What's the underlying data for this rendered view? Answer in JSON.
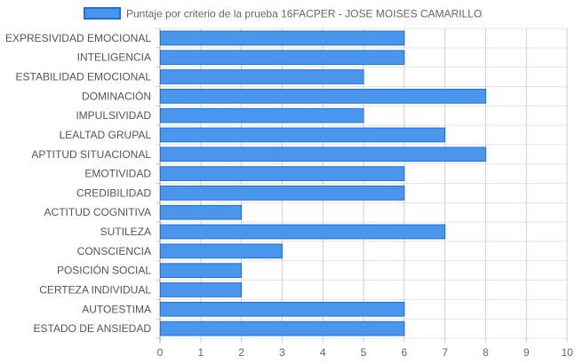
{
  "chart_data": {
    "type": "bar",
    "orientation": "horizontal",
    "categories": [
      "EXPRESIVIDAD EMOCIONAL",
      "INTELIGENCIA",
      "ESTABILIDAD EMOCIONAL",
      "DOMINACIÓN",
      "IMPULSIVIDAD",
      "LEALTAD GRUPAL",
      "APTITUD SITUACIONAL",
      "EMOTIVIDAD",
      "CREDIBILIDAD",
      "ACTITUD COGNITIVA",
      "SUTILEZA",
      "CONSCIENCIA",
      "POSICIÓN SOCIAL",
      "CERTEZA INDIVIDUAL",
      "AUTOESTIMA",
      "ESTADO DE ANSIEDAD"
    ],
    "series": [
      {
        "name": "Puntaje por criterio de la prueba 16FACPER - JOSE MOISES CAMARILLO",
        "values": [
          6,
          6,
          5,
          8,
          5,
          7,
          8,
          6,
          6,
          2,
          7,
          3,
          2,
          2,
          6,
          6
        ],
        "color": "#4a96ec",
        "border_color": "#1e70d6"
      }
    ],
    "xlim": [
      0,
      10
    ],
    "x_ticks": [
      "0",
      "1",
      "2",
      "3",
      "4",
      "5",
      "6",
      "7",
      "8",
      "9",
      "10"
    ],
    "grid": true,
    "legend_position": "top"
  }
}
